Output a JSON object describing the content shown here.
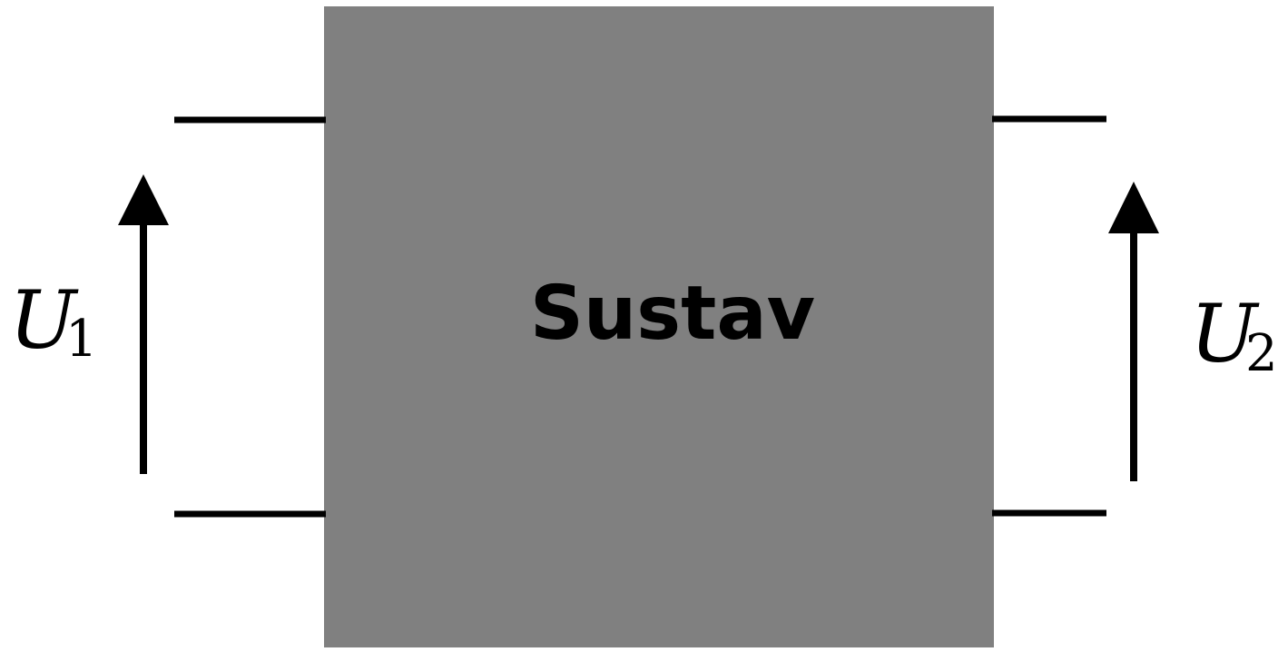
{
  "system": {
    "label": "Sustav",
    "fill": "#808080",
    "text_color": "#000000"
  },
  "input": {
    "voltage_symbol": "U",
    "voltage_index": "1"
  },
  "output": {
    "voltage_symbol": "U",
    "voltage_index": "2"
  },
  "colors": {
    "background": "#ffffff",
    "wire": "#000000",
    "arrow": "#000000"
  }
}
